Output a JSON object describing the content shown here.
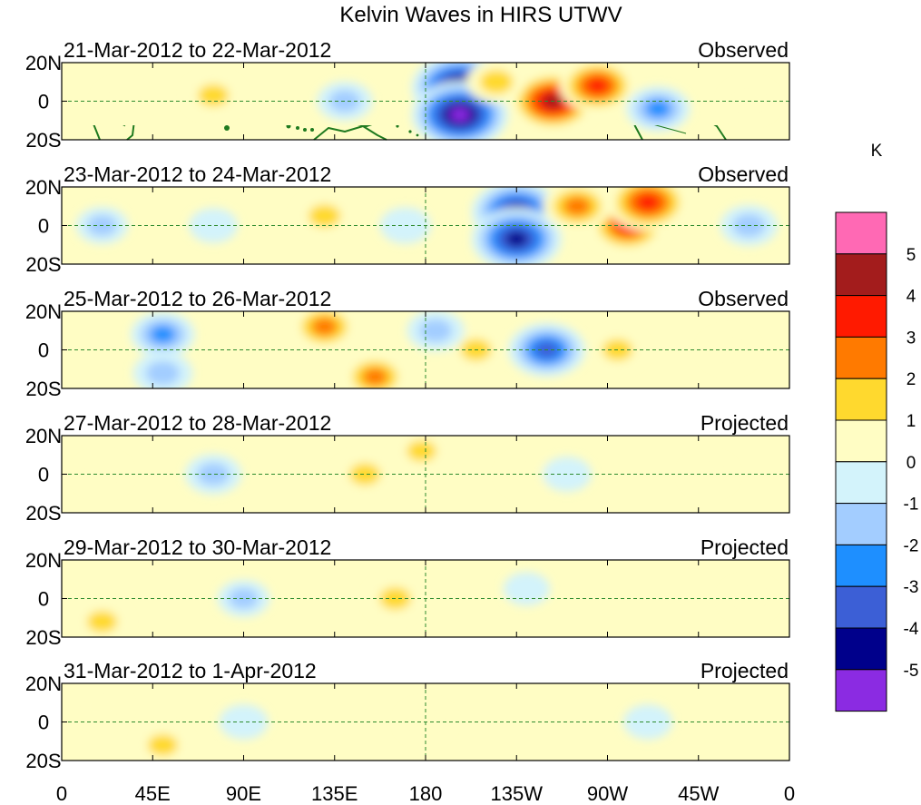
{
  "chart_data": {
    "type": "heatmap",
    "title": "Kelvin Waves in HIRS UTWV",
    "units": "K",
    "xlabel": "",
    "ylabel": "",
    "x_ticks": [
      "0",
      "45E",
      "90E",
      "135E",
      "180",
      "135W",
      "90W",
      "45W",
      "0"
    ],
    "x_range_deg_east": [
      0,
      360
    ],
    "y_ticks": [
      "20N",
      "0",
      "20S"
    ],
    "y_range_deg": [
      -20,
      20
    ],
    "colorbar": {
      "levels": [
        "5",
        "4",
        "3",
        "2",
        "1",
        "0",
        "-1",
        "-2",
        "-3",
        "-4",
        "-5"
      ],
      "colors": [
        "#8b2be2",
        "#00008b",
        "#3c5fd6",
        "#1e8fff",
        "#a3cdff",
        "#d3f3fb",
        "#fffdc4",
        "#ffd92e",
        "#ff7a00",
        "#ff1a00",
        "#a31c1c",
        "#ff69b4"
      ]
    },
    "panels": [
      {
        "date_range": "21-Mar-2012 to 22-Mar-2012",
        "status": "Observed",
        "anomalies_K": [
          {
            "lon": 197,
            "lat": 7,
            "value": -5.2
          },
          {
            "lon": 197,
            "lat": -7,
            "value": -5.2
          },
          {
            "lon": 243,
            "lat": 0,
            "value": 4.2
          },
          {
            "lon": 265,
            "lat": 8,
            "value": 3.3
          },
          {
            "lon": 215,
            "lat": 10,
            "value": 1.8
          },
          {
            "lon": 140,
            "lat": 0,
            "value": -1.4
          },
          {
            "lon": 75,
            "lat": 3,
            "value": 1.3
          },
          {
            "lon": 30,
            "lat": 0,
            "value": 0.8
          },
          {
            "lon": 295,
            "lat": -4,
            "value": -2.2
          },
          {
            "lon": 340,
            "lat": 0,
            "value": 0.9
          }
        ]
      },
      {
        "date_range": "23-Mar-2012 to 24-Mar-2012",
        "status": "Observed",
        "anomalies_K": [
          {
            "lon": 225,
            "lat": 7,
            "value": -4.6
          },
          {
            "lon": 225,
            "lat": -7,
            "value": -4.6
          },
          {
            "lon": 280,
            "lat": 0,
            "value": 3.3
          },
          {
            "lon": 255,
            "lat": 10,
            "value": 2.6
          },
          {
            "lon": 290,
            "lat": 12,
            "value": 3.8
          },
          {
            "lon": 130,
            "lat": 5,
            "value": 1.5
          },
          {
            "lon": 75,
            "lat": 0,
            "value": -0.8
          },
          {
            "lon": 20,
            "lat": 0,
            "value": -1.1
          },
          {
            "lon": 170,
            "lat": 0,
            "value": -1.0
          },
          {
            "lon": 340,
            "lat": 0,
            "value": -1.6
          }
        ]
      },
      {
        "date_range": "25-Mar-2012 to 26-Mar-2012",
        "status": "Observed",
        "anomalies_K": [
          {
            "lon": 240,
            "lat": 0,
            "value": -3.4
          },
          {
            "lon": 205,
            "lat": 0,
            "value": 1.3
          },
          {
            "lon": 275,
            "lat": 0,
            "value": 1.2
          },
          {
            "lon": 130,
            "lat": 12,
            "value": 2.3
          },
          {
            "lon": 155,
            "lat": -14,
            "value": 2.2
          },
          {
            "lon": 50,
            "lat": 8,
            "value": -2.2
          },
          {
            "lon": 50,
            "lat": -12,
            "value": -1.8
          },
          {
            "lon": 185,
            "lat": 10,
            "value": -1.6
          },
          {
            "lon": 330,
            "lat": 0,
            "value": 1.0
          }
        ]
      },
      {
        "date_range": "27-Mar-2012 to 28-Mar-2012",
        "status": "Projected",
        "anomalies_K": [
          {
            "lon": 75,
            "lat": 0,
            "value": -1.5
          },
          {
            "lon": 150,
            "lat": 0,
            "value": 1.3
          },
          {
            "lon": 178,
            "lat": 12,
            "value": 1.1
          },
          {
            "lon": 230,
            "lat": 0,
            "value": 0.9
          },
          {
            "lon": 250,
            "lat": 0,
            "value": -0.8
          },
          {
            "lon": 20,
            "lat": 0,
            "value": 0.8
          },
          {
            "lon": 320,
            "lat": 0,
            "value": 0.7
          }
        ]
      },
      {
        "date_range": "29-Mar-2012 to 30-Mar-2012",
        "status": "Projected",
        "anomalies_K": [
          {
            "lon": 90,
            "lat": 0,
            "value": -1.1
          },
          {
            "lon": 165,
            "lat": 0,
            "value": 1.4
          },
          {
            "lon": 230,
            "lat": 5,
            "value": -0.6
          },
          {
            "lon": 20,
            "lat": -12,
            "value": 1.2
          },
          {
            "lon": 340,
            "lat": 0,
            "value": 0.8
          }
        ]
      },
      {
        "date_range": "31-Mar-2012 to 1-Apr-2012",
        "status": "Projected",
        "anomalies_K": [
          {
            "lon": 90,
            "lat": 0,
            "value": -0.8
          },
          {
            "lon": 180,
            "lat": 0,
            "value": 1.0
          },
          {
            "lon": 290,
            "lat": 0,
            "value": -0.8
          },
          {
            "lon": 50,
            "lat": -12,
            "value": 1.2
          },
          {
            "lon": 20,
            "lat": 8,
            "value": 0.8
          }
        ]
      }
    ]
  }
}
